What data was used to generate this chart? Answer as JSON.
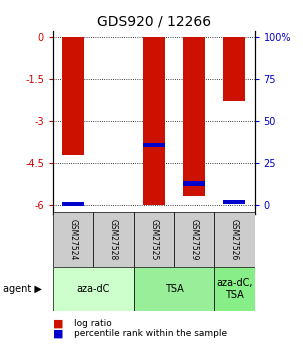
{
  "title": "GDS920 / 12266",
  "samples": [
    "GSM27524",
    "GSM27528",
    "GSM27525",
    "GSM27529",
    "GSM27526"
  ],
  "log_ratios": [
    -4.2,
    0.0,
    -6.0,
    -5.65,
    -2.3
  ],
  "percentile_ranks": [
    1.0,
    0.0,
    36.0,
    13.0,
    2.0
  ],
  "groups": [
    {
      "label": "aza-dC",
      "cols": [
        0,
        1
      ],
      "color": "#ccffcc"
    },
    {
      "label": "TSA",
      "cols": [
        2,
        3
      ],
      "color": "#99ee99"
    },
    {
      "label": "aza-dC,\nTSA",
      "cols": [
        4
      ],
      "color": "#88ee88"
    }
  ],
  "left_yticks": [
    0,
    -1.5,
    -3,
    -4.5,
    -6
  ],
  "right_yticks": [
    0,
    25,
    50,
    75,
    100
  ],
  "ylim_left": [
    -6.3,
    0.2
  ],
  "bar_color": "#cc1100",
  "pct_color": "#0000cc",
  "bar_width": 0.55,
  "background_color": "#ffffff",
  "title_fontsize": 10,
  "tick_fontsize": 7,
  "sample_fontsize": 5.5,
  "agent_fontsize": 7,
  "legend_fontsize": 6.5
}
